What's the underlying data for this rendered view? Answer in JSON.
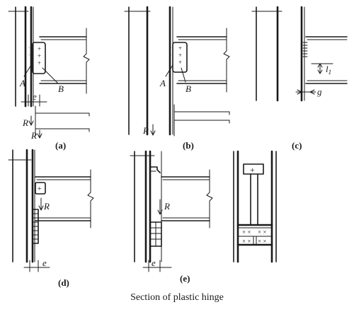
{
  "caption": "Section of plastic hinge",
  "panels": {
    "a": {
      "label": "(a)",
      "labels": {
        "A": "A",
        "B": "B",
        "e": "e",
        "R1": "R",
        "R2": "R"
      }
    },
    "b": {
      "label": "(b)",
      "labels": {
        "A": "A",
        "B": "B",
        "R": "R"
      }
    },
    "c": {
      "label": "(c)",
      "labels": {
        "l1_main": "l",
        "l1_sub": "1",
        "g": "g"
      }
    },
    "d": {
      "label": "(d)",
      "labels": {
        "R": "R",
        "e": "e"
      }
    },
    "e": {
      "label": "(e)",
      "labels": {
        "R": "R",
        "e": "e"
      }
    },
    "f": {
      "label": ""
    }
  }
}
